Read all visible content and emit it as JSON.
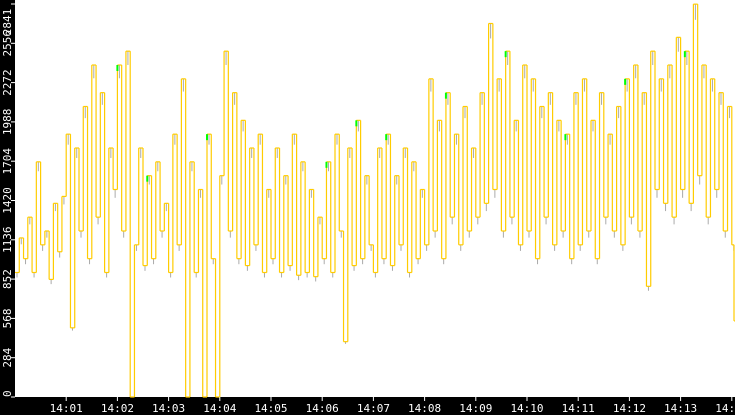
{
  "chart_data": {
    "type": "line",
    "title": "",
    "xlabel": "",
    "ylabel": "",
    "ylim": [
      0,
      2841
    ],
    "yticks": [
      "0",
      "284",
      "568",
      "852",
      "1136",
      "1420",
      "1704",
      "1988",
      "2272",
      "2556",
      "2841"
    ],
    "xticks": [
      "14:01",
      "14:02",
      "14:03",
      "14:04",
      "14:05",
      "14:06",
      "14:07",
      "14:08",
      "14:09",
      "14:10",
      "14:11",
      "14:12",
      "14:13",
      "14:14",
      "14"
    ],
    "x_start": "14:00:00",
    "x_interval_seconds": 5,
    "grid": false,
    "legend": "none",
    "colors": {
      "background": "#ffffff",
      "axis": "#000000",
      "line": "#ffcc00",
      "secondary": "#aaaaaa",
      "highlight": "#00ff00"
    },
    "series": [
      {
        "values": [
          900,
          1150,
          1000,
          1300,
          900,
          1700,
          1100,
          1200,
          850,
          1400,
          1050,
          1450,
          1900,
          500,
          1800,
          1200,
          2100,
          1000,
          2400,
          1300,
          2200,
          900,
          1800,
          1500,
          2400,
          1200,
          2500,
          0,
          1100,
          1800,
          950,
          1600,
          1000,
          1700,
          1200,
          1400,
          900,
          1900,
          1100,
          2300,
          0,
          1700,
          900,
          1500,
          0,
          1900,
          1000,
          0,
          1600,
          2500,
          1200,
          2200,
          1000,
          2000,
          950,
          1800,
          1100,
          1900,
          900,
          1500,
          1000,
          1800,
          900,
          1600,
          950,
          1900,
          880,
          1700,
          900,
          1500,
          870,
          1300,
          1000,
          1700,
          900,
          1900,
          1200,
          400,
          1800,
          950,
          2000,
          1000,
          1600,
          1100,
          900,
          1800,
          1000,
          1900,
          950,
          1600,
          1100,
          1800,
          900,
          1700,
          1000,
          1500,
          1100,
          2300,
          1200,
          2000,
          1000,
          2200,
          1300,
          1900,
          1100,
          2100,
          1200,
          1800,
          1300,
          2200,
          1400,
          2700,
          1500,
          2300,
          1200,
          2500,
          1300,
          2000,
          1100,
          2400,
          1200,
          2300,
          1000,
          2100,
          1300,
          2200,
          1100,
          2000,
          1200,
          1900,
          1000,
          2200,
          1100,
          2300,
          1200,
          2000,
          1000,
          2200,
          1300,
          1900,
          1200,
          2100,
          1100,
          2300,
          1300,
          2400,
          1200,
          2200,
          800,
          2500,
          1500,
          2300,
          1400,
          2400,
          1300,
          2600,
          1500,
          2500,
          1400,
          2840,
          1600,
          2400,
          1300,
          2300,
          1500,
          2200,
          1200,
          2100,
          1100,
          550
        ]
      }
    ]
  }
}
